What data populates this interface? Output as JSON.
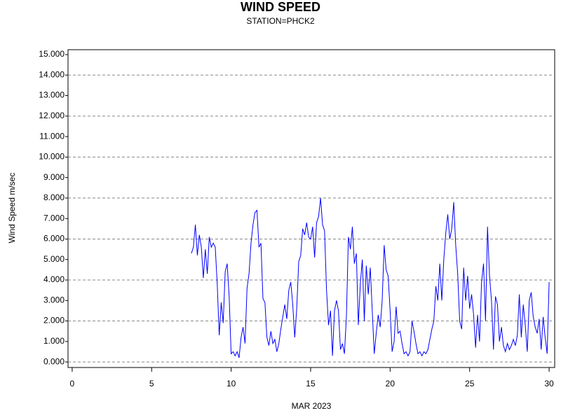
{
  "chart_data": {
    "type": "line",
    "title": "WIND SPEED",
    "subtitle": "STATION=PHCK2",
    "xlabel": "MAR 2023",
    "ylabel": "Wind Speed m/sec",
    "color": "#0000ff",
    "grid": true,
    "xlim": [
      -0.26,
      30.35
    ],
    "xticks": [
      0,
      5,
      10,
      15,
      20,
      25,
      30
    ],
    "ylim": [
      -0.27,
      15.24
    ],
    "yticks": [
      {
        "value": 0,
        "label": "0.000"
      },
      {
        "value": 1,
        "label": "1.000"
      },
      {
        "value": 2,
        "label": "2.000"
      },
      {
        "value": 3,
        "label": "3.000"
      },
      {
        "value": 4,
        "label": "4.000"
      },
      {
        "value": 5,
        "label": "5.000"
      },
      {
        "value": 6,
        "label": "6.000"
      },
      {
        "value": 7,
        "label": "7.000"
      },
      {
        "value": 8,
        "label": "8.000"
      },
      {
        "value": 9,
        "label": "9.000"
      },
      {
        "value": 10,
        "label": "10.000"
      },
      {
        "value": 11,
        "label": "11.000"
      },
      {
        "value": 12,
        "label": "12.000"
      },
      {
        "value": 13,
        "label": "13.000"
      },
      {
        "value": 14,
        "label": "14.000"
      },
      {
        "value": 15,
        "label": "15.000"
      }
    ],
    "x": [
      7.5,
      7.625,
      7.75,
      7.875,
      8,
      8.125,
      8.25,
      8.375,
      8.5,
      8.625,
      8.75,
      8.875,
      9,
      9.125,
      9.25,
      9.375,
      9.5,
      9.625,
      9.75,
      9.875,
      10,
      10.125,
      10.25,
      10.375,
      10.5,
      10.625,
      10.75,
      10.875,
      11,
      11.125,
      11.25,
      11.375,
      11.5,
      11.625,
      11.75,
      11.875,
      12,
      12.125,
      12.25,
      12.375,
      12.5,
      12.625,
      12.75,
      12.875,
      13,
      13.125,
      13.25,
      13.375,
      13.5,
      13.625,
      13.75,
      13.875,
      14,
      14.125,
      14.25,
      14.375,
      14.5,
      14.625,
      14.75,
      14.875,
      15,
      15.125,
      15.25,
      15.375,
      15.5,
      15.625,
      15.75,
      15.875,
      16,
      16.125,
      16.25,
      16.375,
      16.5,
      16.625,
      16.75,
      16.875,
      17,
      17.125,
      17.25,
      17.375,
      17.5,
      17.625,
      17.75,
      17.875,
      18,
      18.125,
      18.25,
      18.375,
      18.5,
      18.625,
      18.75,
      18.875,
      19,
      19.125,
      19.25,
      19.375,
      19.5,
      19.625,
      19.75,
      19.875,
      20,
      20.125,
      20.25,
      20.375,
      20.5,
      20.625,
      20.75,
      20.875,
      21,
      21.125,
      21.25,
      21.375,
      21.5,
      21.625,
      21.75,
      21.875,
      22,
      22.125,
      22.25,
      22.375,
      22.5,
      22.625,
      22.75,
      22.875,
      23,
      23.125,
      23.25,
      23.375,
      23.5,
      23.625,
      23.75,
      23.875,
      24,
      24.125,
      24.25,
      24.375,
      24.5,
      24.625,
      24.75,
      24.875,
      25,
      25.125,
      25.25,
      25.375,
      25.5,
      25.625,
      25.75,
      25.875,
      26,
      26.125,
      26.25,
      26.375,
      26.5,
      26.625,
      26.75,
      26.875,
      27,
      27.125,
      27.25,
      27.375,
      27.5,
      27.625,
      27.75,
      27.875,
      28,
      28.125,
      28.25,
      28.375,
      28.5,
      28.625,
      28.75,
      28.875,
      29,
      29.125,
      29.25,
      29.375,
      29.5,
      29.625,
      29.75,
      29.875,
      30
    ],
    "values": [
      5.3,
      5.6,
      6.7,
      5.2,
      6.2,
      5.6,
      4.1,
      5.5,
      4.3,
      6.1,
      5.6,
      5.8,
      5.6,
      3.8,
      1.3,
      2.9,
      1.9,
      4.4,
      4.8,
      3.2,
      0.4,
      0.5,
      0.3,
      0.5,
      0.2,
      1.2,
      1.7,
      0.9,
      3.6,
      4.3,
      5.8,
      6.7,
      7.3,
      7.4,
      5.6,
      5.8,
      3.1,
      2.9,
      1.2,
      0.8,
      1.5,
      0.9,
      1.1,
      0.5,
      0.9,
      1.6,
      2.2,
      2.8,
      2.1,
      3.5,
      3.9,
      2.8,
      1.2,
      2.6,
      4.9,
      5.2,
      6.5,
      6.2,
      6.8,
      6.1,
      6.0,
      6.6,
      5.1,
      6.8,
      7.1,
      8.0,
      6.7,
      6.4,
      3.5,
      1.8,
      2.5,
      0.3,
      2.5,
      3.0,
      2.5,
      0.6,
      0.9,
      0.4,
      2.2,
      6.1,
      5.5,
      6.6,
      4.8,
      5.3,
      1.8,
      3.8,
      5.0,
      2.0,
      4.7,
      3.3,
      4.6,
      2.5,
      0.4,
      1.4,
      2.3,
      1.7,
      3.0,
      5.7,
      4.5,
      4.2,
      2.5,
      0.5,
      1.0,
      2.7,
      1.4,
      1.5,
      0.9,
      0.4,
      0.5,
      0.3,
      0.5,
      2.0,
      1.5,
      0.9,
      0.4,
      0.5,
      0.3,
      0.5,
      0.4,
      0.6,
      1.1,
      1.6,
      2.0,
      3.7,
      3.0,
      4.8,
      3.0,
      5.0,
      6.3,
      7.2,
      6.0,
      6.5,
      7.8,
      5.7,
      4.3,
      2.0,
      1.6,
      4.6,
      3.0,
      4.2,
      2.6,
      3.3,
      2.3,
      0.7,
      2.3,
      1.0,
      3.9,
      4.8,
      2.0,
      6.6,
      4.2,
      3.0,
      0.6,
      3.2,
      2.8,
      1.0,
      1.7,
      0.8,
      0.5,
      0.9,
      0.6,
      0.8,
      1.1,
      0.8,
      1.3,
      3.3,
      1.2,
      2.8,
      1.8,
      0.5,
      3.0,
      3.4,
      2.2,
      1.7,
      1.4,
      2.1,
      0.6,
      2.2,
      1.2,
      0.4,
      3.9
    ]
  }
}
